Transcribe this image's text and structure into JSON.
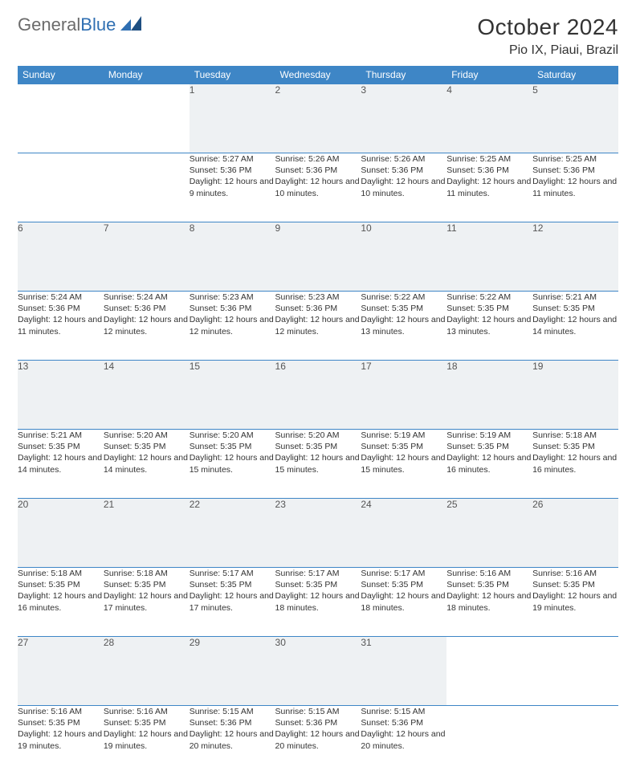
{
  "logo": {
    "textGray": "General",
    "textBlue": "Blue"
  },
  "title": "October 2024",
  "location": "Pio IX, Piaui, Brazil",
  "style": {
    "header_bg": "#3e86c6",
    "header_text": "#ffffff",
    "daynum_bg": "#eef1f3",
    "row_border": "#3e86c6",
    "page_bg": "#ffffff",
    "body_text": "#333333",
    "title_fontsize": 28,
    "location_fontsize": 16,
    "header_fontsize": 12,
    "cell_fontsize": 10.5
  },
  "weekdays": [
    "Sunday",
    "Monday",
    "Tuesday",
    "Wednesday",
    "Thursday",
    "Friday",
    "Saturday"
  ],
  "weeks": [
    [
      null,
      null,
      {
        "n": 1,
        "sunrise": "5:27 AM",
        "sunset": "5:36 PM",
        "daylight": "12 hours and 9 minutes."
      },
      {
        "n": 2,
        "sunrise": "5:26 AM",
        "sunset": "5:36 PM",
        "daylight": "12 hours and 10 minutes."
      },
      {
        "n": 3,
        "sunrise": "5:26 AM",
        "sunset": "5:36 PM",
        "daylight": "12 hours and 10 minutes."
      },
      {
        "n": 4,
        "sunrise": "5:25 AM",
        "sunset": "5:36 PM",
        "daylight": "12 hours and 11 minutes."
      },
      {
        "n": 5,
        "sunrise": "5:25 AM",
        "sunset": "5:36 PM",
        "daylight": "12 hours and 11 minutes."
      }
    ],
    [
      {
        "n": 6,
        "sunrise": "5:24 AM",
        "sunset": "5:36 PM",
        "daylight": "12 hours and 11 minutes."
      },
      {
        "n": 7,
        "sunrise": "5:24 AM",
        "sunset": "5:36 PM",
        "daylight": "12 hours and 12 minutes."
      },
      {
        "n": 8,
        "sunrise": "5:23 AM",
        "sunset": "5:36 PM",
        "daylight": "12 hours and 12 minutes."
      },
      {
        "n": 9,
        "sunrise": "5:23 AM",
        "sunset": "5:36 PM",
        "daylight": "12 hours and 12 minutes."
      },
      {
        "n": 10,
        "sunrise": "5:22 AM",
        "sunset": "5:35 PM",
        "daylight": "12 hours and 13 minutes."
      },
      {
        "n": 11,
        "sunrise": "5:22 AM",
        "sunset": "5:35 PM",
        "daylight": "12 hours and 13 minutes."
      },
      {
        "n": 12,
        "sunrise": "5:21 AM",
        "sunset": "5:35 PM",
        "daylight": "12 hours and 14 minutes."
      }
    ],
    [
      {
        "n": 13,
        "sunrise": "5:21 AM",
        "sunset": "5:35 PM",
        "daylight": "12 hours and 14 minutes."
      },
      {
        "n": 14,
        "sunrise": "5:20 AM",
        "sunset": "5:35 PM",
        "daylight": "12 hours and 14 minutes."
      },
      {
        "n": 15,
        "sunrise": "5:20 AM",
        "sunset": "5:35 PM",
        "daylight": "12 hours and 15 minutes."
      },
      {
        "n": 16,
        "sunrise": "5:20 AM",
        "sunset": "5:35 PM",
        "daylight": "12 hours and 15 minutes."
      },
      {
        "n": 17,
        "sunrise": "5:19 AM",
        "sunset": "5:35 PM",
        "daylight": "12 hours and 15 minutes."
      },
      {
        "n": 18,
        "sunrise": "5:19 AM",
        "sunset": "5:35 PM",
        "daylight": "12 hours and 16 minutes."
      },
      {
        "n": 19,
        "sunrise": "5:18 AM",
        "sunset": "5:35 PM",
        "daylight": "12 hours and 16 minutes."
      }
    ],
    [
      {
        "n": 20,
        "sunrise": "5:18 AM",
        "sunset": "5:35 PM",
        "daylight": "12 hours and 16 minutes."
      },
      {
        "n": 21,
        "sunrise": "5:18 AM",
        "sunset": "5:35 PM",
        "daylight": "12 hours and 17 minutes."
      },
      {
        "n": 22,
        "sunrise": "5:17 AM",
        "sunset": "5:35 PM",
        "daylight": "12 hours and 17 minutes."
      },
      {
        "n": 23,
        "sunrise": "5:17 AM",
        "sunset": "5:35 PM",
        "daylight": "12 hours and 18 minutes."
      },
      {
        "n": 24,
        "sunrise": "5:17 AM",
        "sunset": "5:35 PM",
        "daylight": "12 hours and 18 minutes."
      },
      {
        "n": 25,
        "sunrise": "5:16 AM",
        "sunset": "5:35 PM",
        "daylight": "12 hours and 18 minutes."
      },
      {
        "n": 26,
        "sunrise": "5:16 AM",
        "sunset": "5:35 PM",
        "daylight": "12 hours and 19 minutes."
      }
    ],
    [
      {
        "n": 27,
        "sunrise": "5:16 AM",
        "sunset": "5:35 PM",
        "daylight": "12 hours and 19 minutes."
      },
      {
        "n": 28,
        "sunrise": "5:16 AM",
        "sunset": "5:35 PM",
        "daylight": "12 hours and 19 minutes."
      },
      {
        "n": 29,
        "sunrise": "5:15 AM",
        "sunset": "5:36 PM",
        "daylight": "12 hours and 20 minutes."
      },
      {
        "n": 30,
        "sunrise": "5:15 AM",
        "sunset": "5:36 PM",
        "daylight": "12 hours and 20 minutes."
      },
      {
        "n": 31,
        "sunrise": "5:15 AM",
        "sunset": "5:36 PM",
        "daylight": "12 hours and 20 minutes."
      },
      null,
      null
    ]
  ],
  "labels": {
    "sunrise": "Sunrise:",
    "sunset": "Sunset:",
    "daylight": "Daylight:"
  }
}
